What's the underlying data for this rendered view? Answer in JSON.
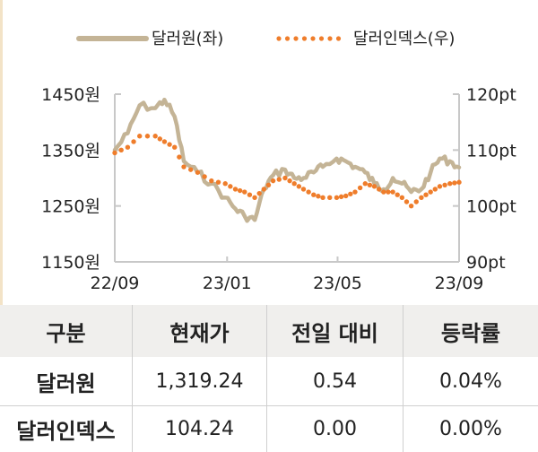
{
  "chart_data": {
    "type": "line",
    "legend": [
      {
        "label": "달러원(좌)",
        "style": "solid",
        "color": "#c4b496"
      },
      {
        "label": "달러인덱스(우)",
        "style": "dotted",
        "color": "#ef7d2b"
      }
    ],
    "legend_position": "top",
    "x_ticks": [
      "22/09",
      "23/01",
      "23/05",
      "23/09"
    ],
    "x_range": [
      "2022-09",
      "2023-09"
    ],
    "y_left": {
      "ticks": [
        "1450원",
        "1350원",
        "1250원",
        "1150원"
      ],
      "range": [
        1150,
        1450
      ]
    },
    "y_right": {
      "ticks": [
        "120pt",
        "110pt",
        "100pt",
        "90pt"
      ],
      "range": [
        90,
        120
      ]
    },
    "grid": false,
    "series": [
      {
        "name": "달러원(좌)",
        "axis": "left",
        "points": [
          [
            "2022-09-01",
            1350
          ],
          [
            "2022-09-15",
            1380
          ],
          [
            "2022-09-28",
            1430
          ],
          [
            "2022-10-15",
            1425
          ],
          [
            "2022-10-25",
            1440
          ],
          [
            "2022-11-05",
            1410
          ],
          [
            "2022-11-15",
            1330
          ],
          [
            "2022-11-30",
            1310
          ],
          [
            "2022-12-15",
            1290
          ],
          [
            "2022-12-30",
            1265
          ],
          [
            "2023-01-10",
            1245
          ],
          [
            "2023-01-20",
            1232
          ],
          [
            "2023-01-31",
            1225
          ],
          [
            "2023-02-10",
            1280
          ],
          [
            "2023-02-20",
            1305
          ],
          [
            "2023-03-05",
            1315
          ],
          [
            "2023-03-15",
            1300
          ],
          [
            "2023-03-25",
            1300
          ],
          [
            "2023-04-05",
            1310
          ],
          [
            "2023-04-15",
            1320
          ],
          [
            "2023-04-30",
            1335
          ],
          [
            "2023-05-10",
            1330
          ],
          [
            "2023-05-20",
            1320
          ],
          [
            "2023-05-31",
            1310
          ],
          [
            "2023-06-10",
            1290
          ],
          [
            "2023-06-20",
            1280
          ],
          [
            "2023-06-30",
            1300
          ],
          [
            "2023-07-10",
            1290
          ],
          [
            "2023-07-20",
            1275
          ],
          [
            "2023-07-31",
            1280
          ],
          [
            "2023-08-10",
            1310
          ],
          [
            "2023-08-20",
            1335
          ],
          [
            "2023-08-31",
            1330
          ],
          [
            "2023-09-10",
            1319
          ]
        ]
      },
      {
        "name": "달러인덱스(우)",
        "axis": "right",
        "points": [
          [
            "2022-09-01",
            109.5
          ],
          [
            "2022-09-15",
            110.5
          ],
          [
            "2022-09-28",
            112.5
          ],
          [
            "2022-10-15",
            112.5
          ],
          [
            "2022-10-25",
            111.5
          ],
          [
            "2022-11-05",
            110.5
          ],
          [
            "2022-11-15",
            107
          ],
          [
            "2022-11-30",
            106
          ],
          [
            "2022-12-15",
            104.5
          ],
          [
            "2022-12-30",
            104
          ],
          [
            "2023-01-10",
            103
          ],
          [
            "2023-01-20",
            102.5
          ],
          [
            "2023-01-31",
            101.5
          ],
          [
            "2023-02-10",
            103
          ],
          [
            "2023-02-20",
            104.5
          ],
          [
            "2023-03-05",
            105
          ],
          [
            "2023-03-15",
            104
          ],
          [
            "2023-03-25",
            103
          ],
          [
            "2023-04-05",
            102
          ],
          [
            "2023-04-15",
            101.5
          ],
          [
            "2023-04-30",
            101.5
          ],
          [
            "2023-05-10",
            101.8
          ],
          [
            "2023-05-20",
            102.5
          ],
          [
            "2023-05-31",
            104
          ],
          [
            "2023-06-10",
            103.5
          ],
          [
            "2023-06-20",
            102.5
          ],
          [
            "2023-06-30",
            102.5
          ],
          [
            "2023-07-10",
            101.5
          ],
          [
            "2023-07-20",
            100
          ],
          [
            "2023-07-31",
            101.5
          ],
          [
            "2023-08-10",
            102.5
          ],
          [
            "2023-08-20",
            103.5
          ],
          [
            "2023-08-31",
            104
          ],
          [
            "2023-09-10",
            104.24
          ]
        ]
      }
    ]
  },
  "table": {
    "headers": [
      "구분",
      "현재가",
      "전일 대비",
      "등락률"
    ],
    "rows": [
      {
        "label": "달러원",
        "price": "1,319.24",
        "change": "0.54",
        "rate": "0.04%"
      },
      {
        "label": "달러인덱스",
        "price": "104.24",
        "change": "0.00",
        "rate": "0.00%"
      }
    ]
  }
}
